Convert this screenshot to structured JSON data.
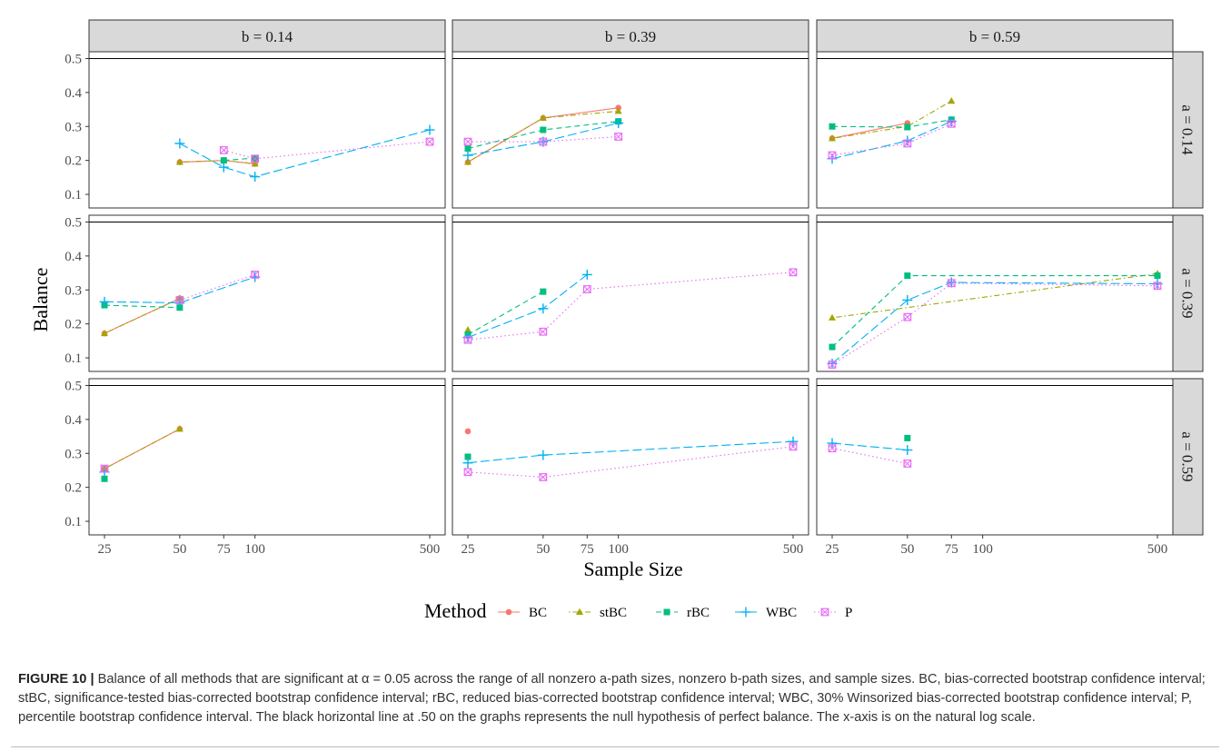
{
  "chart_data": {
    "type": "line",
    "facet_type": "grid",
    "x_scale": "log",
    "x_ticks": [
      25,
      50,
      75,
      100,
      500
    ],
    "x_tick_labels": [
      "25",
      "50",
      "75",
      "100",
      "500"
    ],
    "y_ticks": [
      0.1,
      0.2,
      0.3,
      0.4,
      0.5
    ],
    "y_tick_labels": [
      "0.1",
      "0.2",
      "0.3",
      "0.4",
      "0.5"
    ],
    "ylim": [
      0.06,
      0.52
    ],
    "reference_line": 0.5,
    "xlabel": "Sample Size",
    "ylabel": "Balance",
    "column_facets": [
      "b = 0.14",
      "b = 0.39",
      "b = 0.59"
    ],
    "row_facets": [
      "a = 0.14",
      "a = 0.39",
      "a = 0.59"
    ],
    "grid": false,
    "legend": {
      "position": "bottom",
      "title": "Method",
      "entries": [
        {
          "name": "BC",
          "color": "#F8766D",
          "marker": "circle",
          "dash": "solid"
        },
        {
          "name": "stBC",
          "color": "#A3A500",
          "marker": "triangle",
          "dash": "dotdash"
        },
        {
          "name": "rBC",
          "color": "#00BF7D",
          "marker": "square",
          "dash": "dashed"
        },
        {
          "name": "WBC",
          "color": "#00B0F6",
          "marker": "plus",
          "dash": "longdash"
        },
        {
          "name": "P",
          "color": "#E76BF3",
          "marker": "boxcross",
          "dash": "dotted"
        }
      ]
    },
    "panels": [
      {
        "row": 0,
        "col": 0,
        "series": [
          {
            "name": "BC",
            "points": [
              [
                50,
                0.195
              ],
              [
                75,
                0.2
              ],
              [
                100,
                0.19
              ]
            ]
          },
          {
            "name": "stBC",
            "points": [
              [
                50,
                0.195
              ],
              [
                75,
                0.2
              ],
              [
                100,
                0.19
              ]
            ]
          },
          {
            "name": "rBC",
            "points": [
              [
                75,
                0.2
              ],
              [
                100,
                0.207
              ]
            ]
          },
          {
            "name": "WBC",
            "points": [
              [
                50,
                0.25
              ],
              [
                75,
                0.18
              ],
              [
                100,
                0.152
              ],
              [
                500,
                0.29
              ]
            ]
          },
          {
            "name": "P",
            "points": [
              [
                75,
                0.23
              ],
              [
                100,
                0.205
              ],
              [
                500,
                0.255
              ]
            ]
          }
        ]
      },
      {
        "row": 0,
        "col": 1,
        "series": [
          {
            "name": "BC",
            "points": [
              [
                25,
                0.195
              ],
              [
                50,
                0.325
              ],
              [
                100,
                0.355
              ]
            ]
          },
          {
            "name": "stBC",
            "points": [
              [
                25,
                0.195
              ],
              [
                50,
                0.325
              ],
              [
                100,
                0.345
              ]
            ]
          },
          {
            "name": "rBC",
            "points": [
              [
                25,
                0.235
              ],
              [
                50,
                0.29
              ],
              [
                100,
                0.315
              ]
            ]
          },
          {
            "name": "WBC",
            "points": [
              [
                25,
                0.215
              ],
              [
                50,
                0.255
              ],
              [
                100,
                0.31
              ]
            ]
          },
          {
            "name": "P",
            "points": [
              [
                25,
                0.255
              ],
              [
                50,
                0.255
              ],
              [
                100,
                0.27
              ]
            ]
          }
        ]
      },
      {
        "row": 0,
        "col": 2,
        "series": [
          {
            "name": "BC",
            "points": [
              [
                25,
                0.265
              ],
              [
                50,
                0.31
              ]
            ]
          },
          {
            "name": "stBC",
            "points": [
              [
                25,
                0.265
              ],
              [
                50,
                0.3
              ],
              [
                75,
                0.375
              ]
            ]
          },
          {
            "name": "rBC",
            "points": [
              [
                25,
                0.3
              ],
              [
                50,
                0.298
              ],
              [
                75,
                0.32
              ]
            ]
          },
          {
            "name": "WBC",
            "points": [
              [
                25,
                0.205
              ],
              [
                50,
                0.258
              ],
              [
                75,
                0.315
              ]
            ]
          },
          {
            "name": "P",
            "points": [
              [
                25,
                0.215
              ],
              [
                50,
                0.25
              ],
              [
                75,
                0.308
              ]
            ]
          }
        ]
      },
      {
        "row": 1,
        "col": 0,
        "series": [
          {
            "name": "BC",
            "points": [
              [
                25,
                0.172
              ],
              [
                50,
                0.275
              ]
            ]
          },
          {
            "name": "stBC",
            "points": [
              [
                25,
                0.172
              ],
              [
                50,
                0.275
              ]
            ]
          },
          {
            "name": "rBC",
            "points": [
              [
                25,
                0.255
              ],
              [
                50,
                0.248
              ]
            ]
          },
          {
            "name": "WBC",
            "points": [
              [
                25,
                0.265
              ],
              [
                50,
                0.262
              ],
              [
                100,
                0.338
              ]
            ]
          },
          {
            "name": "P",
            "points": [
              [
                50,
                0.27
              ],
              [
                100,
                0.345
              ]
            ]
          }
        ]
      },
      {
        "row": 1,
        "col": 1,
        "series": [
          {
            "name": "stBC",
            "points": [
              [
                25,
                0.182
              ]
            ]
          },
          {
            "name": "rBC",
            "points": [
              [
                25,
                0.168
              ],
              [
                50,
                0.295
              ]
            ]
          },
          {
            "name": "WBC",
            "points": [
              [
                25,
                0.16
              ],
              [
                50,
                0.245
              ],
              [
                75,
                0.345
              ]
            ]
          },
          {
            "name": "P",
            "points": [
              [
                25,
                0.153
              ],
              [
                50,
                0.177
              ],
              [
                75,
                0.302
              ],
              [
                500,
                0.352
              ]
            ]
          }
        ]
      },
      {
        "row": 1,
        "col": 2,
        "series": [
          {
            "name": "stBC",
            "points": [
              [
                25,
                0.218
              ],
              [
                500,
                0.348
              ]
            ]
          },
          {
            "name": "rBC",
            "points": [
              [
                25,
                0.132
              ],
              [
                50,
                0.342
              ],
              [
                500,
                0.342
              ]
            ]
          },
          {
            "name": "WBC",
            "points": [
              [
                25,
                0.083
              ],
              [
                50,
                0.27
              ],
              [
                75,
                0.322
              ],
              [
                500,
                0.318
              ]
            ]
          },
          {
            "name": "P",
            "points": [
              [
                25,
                0.08
              ],
              [
                50,
                0.22
              ],
              [
                75,
                0.32
              ],
              [
                500,
                0.312
              ]
            ]
          }
        ]
      },
      {
        "row": 2,
        "col": 0,
        "series": [
          {
            "name": "BC",
            "points": [
              [
                25,
                0.255
              ],
              [
                50,
                0.372
              ]
            ]
          },
          {
            "name": "stBC",
            "points": [
              [
                25,
                0.255
              ],
              [
                50,
                0.372
              ]
            ]
          },
          {
            "name": "rBC",
            "points": [
              [
                25,
                0.225
              ]
            ]
          },
          {
            "name": "WBC",
            "points": [
              [
                25,
                0.245
              ]
            ]
          },
          {
            "name": "P",
            "points": [
              [
                25,
                0.255
              ]
            ]
          }
        ]
      },
      {
        "row": 2,
        "col": 1,
        "series": [
          {
            "name": "BC",
            "points": [
              [
                25,
                0.365
              ]
            ]
          },
          {
            "name": "rBC",
            "points": [
              [
                25,
                0.29
              ]
            ]
          },
          {
            "name": "WBC",
            "points": [
              [
                25,
                0.272
              ],
              [
                50,
                0.295
              ],
              [
                500,
                0.335
              ]
            ]
          },
          {
            "name": "P",
            "points": [
              [
                25,
                0.245
              ],
              [
                50,
                0.23
              ],
              [
                500,
                0.32
              ]
            ]
          }
        ]
      },
      {
        "row": 2,
        "col": 2,
        "series": [
          {
            "name": "rBC",
            "points": [
              [
                50,
                0.345
              ]
            ]
          },
          {
            "name": "WBC",
            "points": [
              [
                25,
                0.33
              ],
              [
                50,
                0.31
              ]
            ]
          },
          {
            "name": "P",
            "points": [
              [
                25,
                0.315
              ],
              [
                50,
                0.27
              ]
            ]
          }
        ]
      }
    ]
  },
  "caption": {
    "label": "FIGURE 10 |",
    "text": "Balance of all methods that are significant at α = 0.05 across the range of all nonzero a-path sizes, nonzero b-path sizes, and sample sizes. BC, bias-corrected bootstrap confidence interval; stBC, significance-tested bias-corrected bootstrap confidence interval; rBC, reduced bias-corrected bootstrap confidence interval; WBC, 30% Winsorized bias-corrected bootstrap confidence interval; P, percentile bootstrap confidence interval. The black horizontal line at .50 on the graphs represents the null hypothesis of perfect balance. The x-axis is on the natural log scale."
  }
}
